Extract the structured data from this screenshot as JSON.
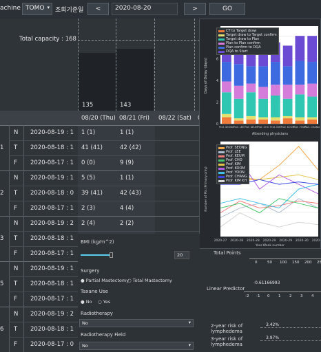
{
  "toolbar": {
    "machine_label": "achine",
    "machine_value": "TOMO",
    "date_label": "조회기준일",
    "prev_label": "<",
    "date_value": "2020-08-20",
    "next_label": ">",
    "go_label": "GO"
  },
  "capacity": {
    "label": "Total capacity : 168"
  },
  "days": [
    {
      "value": "135",
      "header": "08/20 (Thu)"
    },
    {
      "value": "143",
      "header": "08/21 (Fri)"
    },
    {
      "value": "",
      "header": "08/22 (Sat)"
    },
    {
      "value": "",
      "header": "0"
    }
  ],
  "groups": [
    {
      "id": "1",
      "rows": [
        {
          "t": "N",
          "date": "2020-08-19 : 1",
          "c1": "1 (1)",
          "c2": "1 (1)"
        },
        {
          "t": "T",
          "date": "2020-08-18 : 1",
          "c1": "41 (41)",
          "c2": "42 (42)"
        },
        {
          "t": "F",
          "date": "2020-08-17 : 1",
          "c1": "0 (0)",
          "c2": "9 (9)"
        }
      ]
    },
    {
      "id": "2",
      "rows": [
        {
          "t": "N",
          "date": "2020-08-19 : 1",
          "c1": "5 (5)",
          "c2": "1 (1)"
        },
        {
          "t": "T",
          "date": "2020-08-18 : 0",
          "c1": "39 (41)",
          "c2": "42 (43)"
        },
        {
          "t": "F",
          "date": "2020-08-17 : 1",
          "c1": "2 (3)",
          "c2": "4 (4)"
        }
      ]
    },
    {
      "id": "3",
      "rows": [
        {
          "t": "N",
          "date": "2020-08-19 : 2",
          "c1": "2 (4)",
          "c2": "2 (2)"
        },
        {
          "t": "T",
          "date": "2020-08-18 : 1",
          "c1": "",
          "c2": ""
        },
        {
          "t": "F",
          "date": "2020-08-17 : 1",
          "c1": "",
          "c2": ""
        }
      ]
    },
    {
      "id": "5",
      "rows": [
        {
          "t": "N",
          "date": "2020-08-19 : 1",
          "c1": "",
          "c2": ""
        },
        {
          "t": "T",
          "date": "2020-08-18 : 1",
          "c1": "",
          "c2": ""
        },
        {
          "t": "F",
          "date": "2020-08-17 : 1",
          "c1": "",
          "c2": ""
        }
      ]
    },
    {
      "id": "6",
      "rows": [
        {
          "t": "N",
          "date": "2020-08-19 : 2",
          "c1": "",
          "c2": ""
        },
        {
          "t": "T",
          "date": "2020-08-18 : 1",
          "c1": "",
          "c2": ""
        },
        {
          "t": "F",
          "date": "2020-08-17 : 0",
          "c1": "",
          "c2": ""
        }
      ]
    }
  ],
  "form": {
    "bmi_label": "BMI (kg/m^2)",
    "bmi_value": "20",
    "surgery_label": "Surgery",
    "surgery_opt1": "Partial Mastectomy",
    "surgery_opt2": "Total Mastectomy",
    "taxane_label": "Taxane Use",
    "taxane_opt1": "No",
    "taxane_opt2": "Yes",
    "rt_label": "Radiotherapy",
    "rt_value": "No",
    "rtf_label": "Radiotherapy Field",
    "rtf_value": "No"
  },
  "nomogram": {
    "total_points": "Total Points",
    "tp_ticks": [
      "0",
      "50",
      "100",
      "150",
      "200",
      "250"
    ],
    "linear_predictor": "Linear Predictor",
    "lp_value": "-0.61166993",
    "lp_ticks": [
      "-2",
      "-1",
      "0",
      "1",
      "2",
      "3",
      "4"
    ],
    "risk2_label": "2-year risk of lymphedema",
    "risk2_value": "3.42%",
    "risk3_label": "3-year risk of lymphedema",
    "risk3_value": "3.97%"
  },
  "chart1": {
    "ylabel": "Days of Delay (days)",
    "xlabel": "Attending physicians",
    "y_ticks": [
      "0",
      "2",
      "4",
      "6",
      "8"
    ],
    "x_ticks": [
      "Prof. SEONG",
      "Prof. LEE",
      "Prof. KEUM",
      "Prof. CHO",
      "Prof. KIM",
      "Prof. KOOM",
      "Prof. YOON",
      "Prof. CHANG"
    ],
    "legend": [
      "CT to Target draw",
      "Target draw to Target confirm",
      "Target draw to Plan",
      "Plan to Plan confirm",
      "Plan confirm to DQA",
      "DQA to Start"
    ],
    "colors": [
      "#f07a3a",
      "#e3e070",
      "#2fc7b2",
      "#d57bd9",
      "#3d6ae0",
      "#6c4bd4"
    ]
  },
  "chart1_data": {
    "type": "bar",
    "categories": [
      "Prof. SEONG",
      "Prof. LEE",
      "Prof. KEUM",
      "Prof. CHO",
      "Prof. KIM",
      "Prof. KOOM",
      "Prof. YOON",
      "Prof. CHANG"
    ],
    "ylim": [
      0,
      9
    ],
    "series": [
      {
        "name": "CT to Target draw",
        "values": [
          0.6,
          0.3,
          0.4,
          0.4,
          0.3,
          0.5,
          0.3,
          0.4
        ]
      },
      {
        "name": "Target draw to Target confirm",
        "values": [
          0.3,
          0.2,
          0.3,
          0.2,
          0.3,
          0.2,
          0.3,
          0.2
        ]
      },
      {
        "name": "Target draw to Plan",
        "values": [
          2.0,
          1.8,
          2.2,
          1.7,
          2.0,
          1.6,
          2.1,
          1.9
        ]
      },
      {
        "name": "Plan to Plan confirm",
        "values": [
          1.0,
          1.2,
          0.8,
          1.1,
          1.0,
          1.3,
          0.9,
          1.2
        ]
      },
      {
        "name": "Plan confirm to DQA",
        "values": [
          1.8,
          2.0,
          1.6,
          1.9,
          2.1,
          1.7,
          2.2,
          2.0
        ]
      },
      {
        "name": "DQA to Start",
        "values": [
          1.7,
          1.9,
          2.0,
          1.6,
          1.8,
          1.9,
          2.3,
          2.4
        ]
      }
    ]
  },
  "chart2": {
    "ylabel": "Number of Pts (Primary only)",
    "xlabel": "Year-Week number",
    "x_ticks": [
      "2020-27",
      "2020-28",
      "2020-28",
      "2020-29",
      "2020-29",
      "2020-30",
      "2020-30"
    ],
    "legend": [
      "Prof. SEONG",
      "Prof. LEE",
      "Prof. KEUM",
      "Prof. CHO",
      "Prof. KIM",
      "Prof. KOOM",
      "Prof. YOON",
      "Prof. CHANG",
      "Prof. KIM KH"
    ],
    "colors": [
      "#f2a94a",
      "#aebdd0",
      "#f47a7a",
      "#46c66d",
      "#e3c54a",
      "#b35ee0",
      "#41bfe6",
      "#3d47e0",
      "#d5d5d5"
    ]
  },
  "chart2_data": {
    "type": "line",
    "x": [
      0,
      1,
      2,
      3,
      4,
      5
    ],
    "ylim": [
      0,
      40
    ],
    "series": [
      {
        "name": "Prof. SEONG",
        "values": [
          22,
          24,
          24,
          30,
          38,
          28
        ]
      },
      {
        "name": "Prof. LEE",
        "values": [
          8,
          12,
          14,
          10,
          16,
          12
        ]
      },
      {
        "name": "Prof. KEUM",
        "values": [
          10,
          15,
          12,
          13,
          15,
          14
        ]
      },
      {
        "name": "Prof. CHO",
        "values": [
          12,
          14,
          10,
          16,
          14,
          12
        ]
      },
      {
        "name": "Prof. KIM",
        "values": [
          24,
          25,
          24,
          25,
          26,
          24
        ]
      },
      {
        "name": "Prof. KOOM",
        "values": [
          30,
          32,
          20,
          26,
          22,
          18
        ]
      },
      {
        "name": "Prof. YOON",
        "values": [
          14,
          16,
          14,
          12,
          20,
          22
        ]
      },
      {
        "name": "Prof. CHANG",
        "values": [
          22,
          22,
          24,
          22,
          23,
          22
        ]
      },
      {
        "name": "Prof. KIM KH",
        "values": [
          4,
          10,
          6,
          4,
          6,
          5
        ]
      }
    ]
  }
}
